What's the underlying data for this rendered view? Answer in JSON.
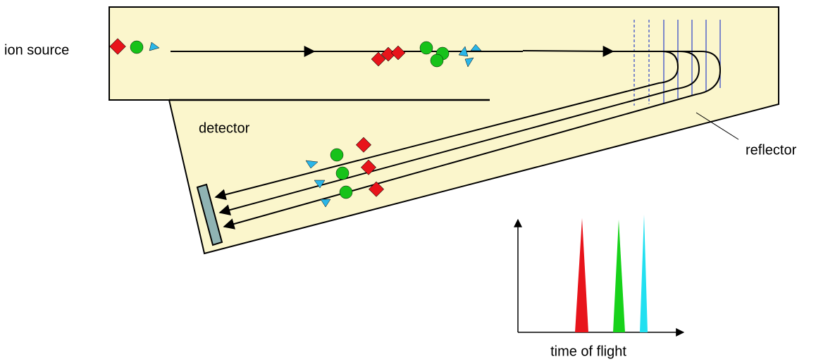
{
  "labels": {
    "ion_source": "ion source",
    "detector": "detector",
    "reflector": "reflector",
    "time_of_flight": "time of flight"
  }
}
